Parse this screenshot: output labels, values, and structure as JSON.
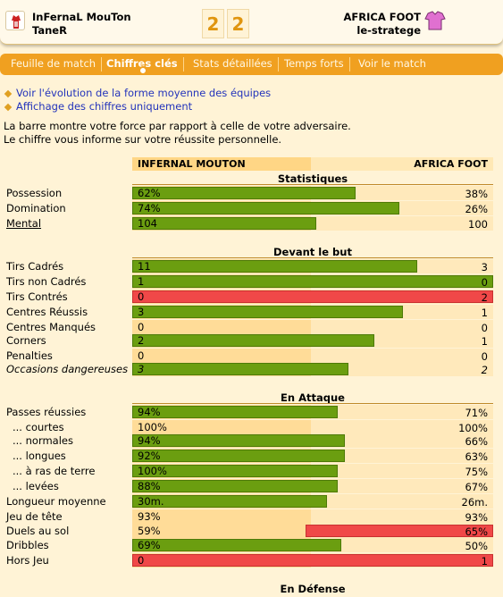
{
  "header": {
    "home_team": "InFernaL MouTon",
    "home_coach": "TaneR",
    "home_score": "2",
    "away_score": "2",
    "away_team": "AFRICA FOOT",
    "away_coach": "le-stratege",
    "away_shirt_color": "#e070d0",
    "home_shirt_color": "#cc2222"
  },
  "tabs": [
    {
      "label": "Feuille de match"
    },
    {
      "label": "Chiffres clés"
    },
    {
      "label": "Stats détaillées"
    },
    {
      "label": "Temps forts"
    },
    {
      "label": "Voir le match"
    }
  ],
  "links": [
    {
      "label": "Voir l'évolution de la forme moyenne des équipes"
    },
    {
      "label": "Affichage des chiffres uniquement"
    }
  ],
  "intro": [
    "La barre montre votre force par rapport à celle de votre adversaire.",
    "Le chiffre vous informe sur votre réussite personnelle."
  ],
  "teams": {
    "left": "INFERNAL MOUTON",
    "right": "AFRICA FOOT"
  },
  "colors": {
    "bar_green": "#6b9e10",
    "bar_red": "#f04848",
    "accent": "#f0a020"
  },
  "sections": [
    {
      "title": "Statistiques"
    },
    {
      "title": "Devant le but"
    },
    {
      "title": "En Attaque"
    },
    {
      "title": "En Défense"
    }
  ],
  "rows": [
    {
      "label": "Possession",
      "left": "62%",
      "right": "38%",
      "color": "green",
      "bar_share": 0.62
    },
    {
      "label": "Domination",
      "left": "74%",
      "right": "26%",
      "color": "green",
      "bar_share": 0.74
    },
    {
      "label": "Mental",
      "left": "104",
      "right": "100",
      "color": "green",
      "bar_share": 0.51
    },
    {
      "label": "Tirs Cadrés",
      "left": "11",
      "right": "3",
      "color": "green",
      "bar_share": 0.79
    },
    {
      "label": "Tirs non Cadrés",
      "left": "1",
      "right": "0",
      "color": "green",
      "bar_share": 1.0
    },
    {
      "label": "Tirs Contrés",
      "left": "0",
      "right": "2",
      "color": "red",
      "bar_share": 1.0
    },
    {
      "label": "Centres Réussis",
      "left": "3",
      "right": "1",
      "color": "green",
      "bar_share": 0.75
    },
    {
      "label": "Centres Manqués",
      "left": "0",
      "right": "0",
      "color": "none",
      "bar_share": 0
    },
    {
      "label": "Corners",
      "left": "2",
      "right": "1",
      "color": "green",
      "bar_share": 0.67
    },
    {
      "label": "Penalties",
      "left": "0",
      "right": "0",
      "color": "none",
      "bar_share": 0
    },
    {
      "label": "Occasions dangereuses",
      "left": "3",
      "right": "2",
      "color": "green",
      "bar_share": 0.6
    },
    {
      "label": "Passes réussies",
      "left": "94%",
      "right": "71%",
      "color": "green",
      "bar_share": 0.57
    },
    {
      "label": "... courtes",
      "left": "100%",
      "right": "100%",
      "color": "none",
      "bar_share": 0
    },
    {
      "label": "... normales",
      "left": "94%",
      "right": "66%",
      "color": "green",
      "bar_share": 0.59
    },
    {
      "label": "... longues",
      "left": "92%",
      "right": "63%",
      "color": "green",
      "bar_share": 0.59
    },
    {
      "label": "... à ras de terre",
      "left": "100%",
      "right": "75%",
      "color": "green",
      "bar_share": 0.57
    },
    {
      "label": "... levées",
      "left": "88%",
      "right": "67%",
      "color": "green",
      "bar_share": 0.57
    },
    {
      "label": "Longueur moyenne",
      "left": "30m.",
      "right": "26m.",
      "color": "green",
      "bar_share": 0.54
    },
    {
      "label": "Jeu de tête",
      "left": "93%",
      "right": "93%",
      "color": "none",
      "bar_share": 0
    },
    {
      "label": "Duels au sol",
      "left": "59%",
      "right": "65%",
      "color": "red",
      "bar_share": 0.52
    },
    {
      "label": "Dribbles",
      "left": "69%",
      "right": "50%",
      "color": "green",
      "bar_share": 0.58
    },
    {
      "label": "Hors Jeu",
      "left": "0",
      "right": "1",
      "color": "red",
      "bar_share": 1.0
    }
  ]
}
